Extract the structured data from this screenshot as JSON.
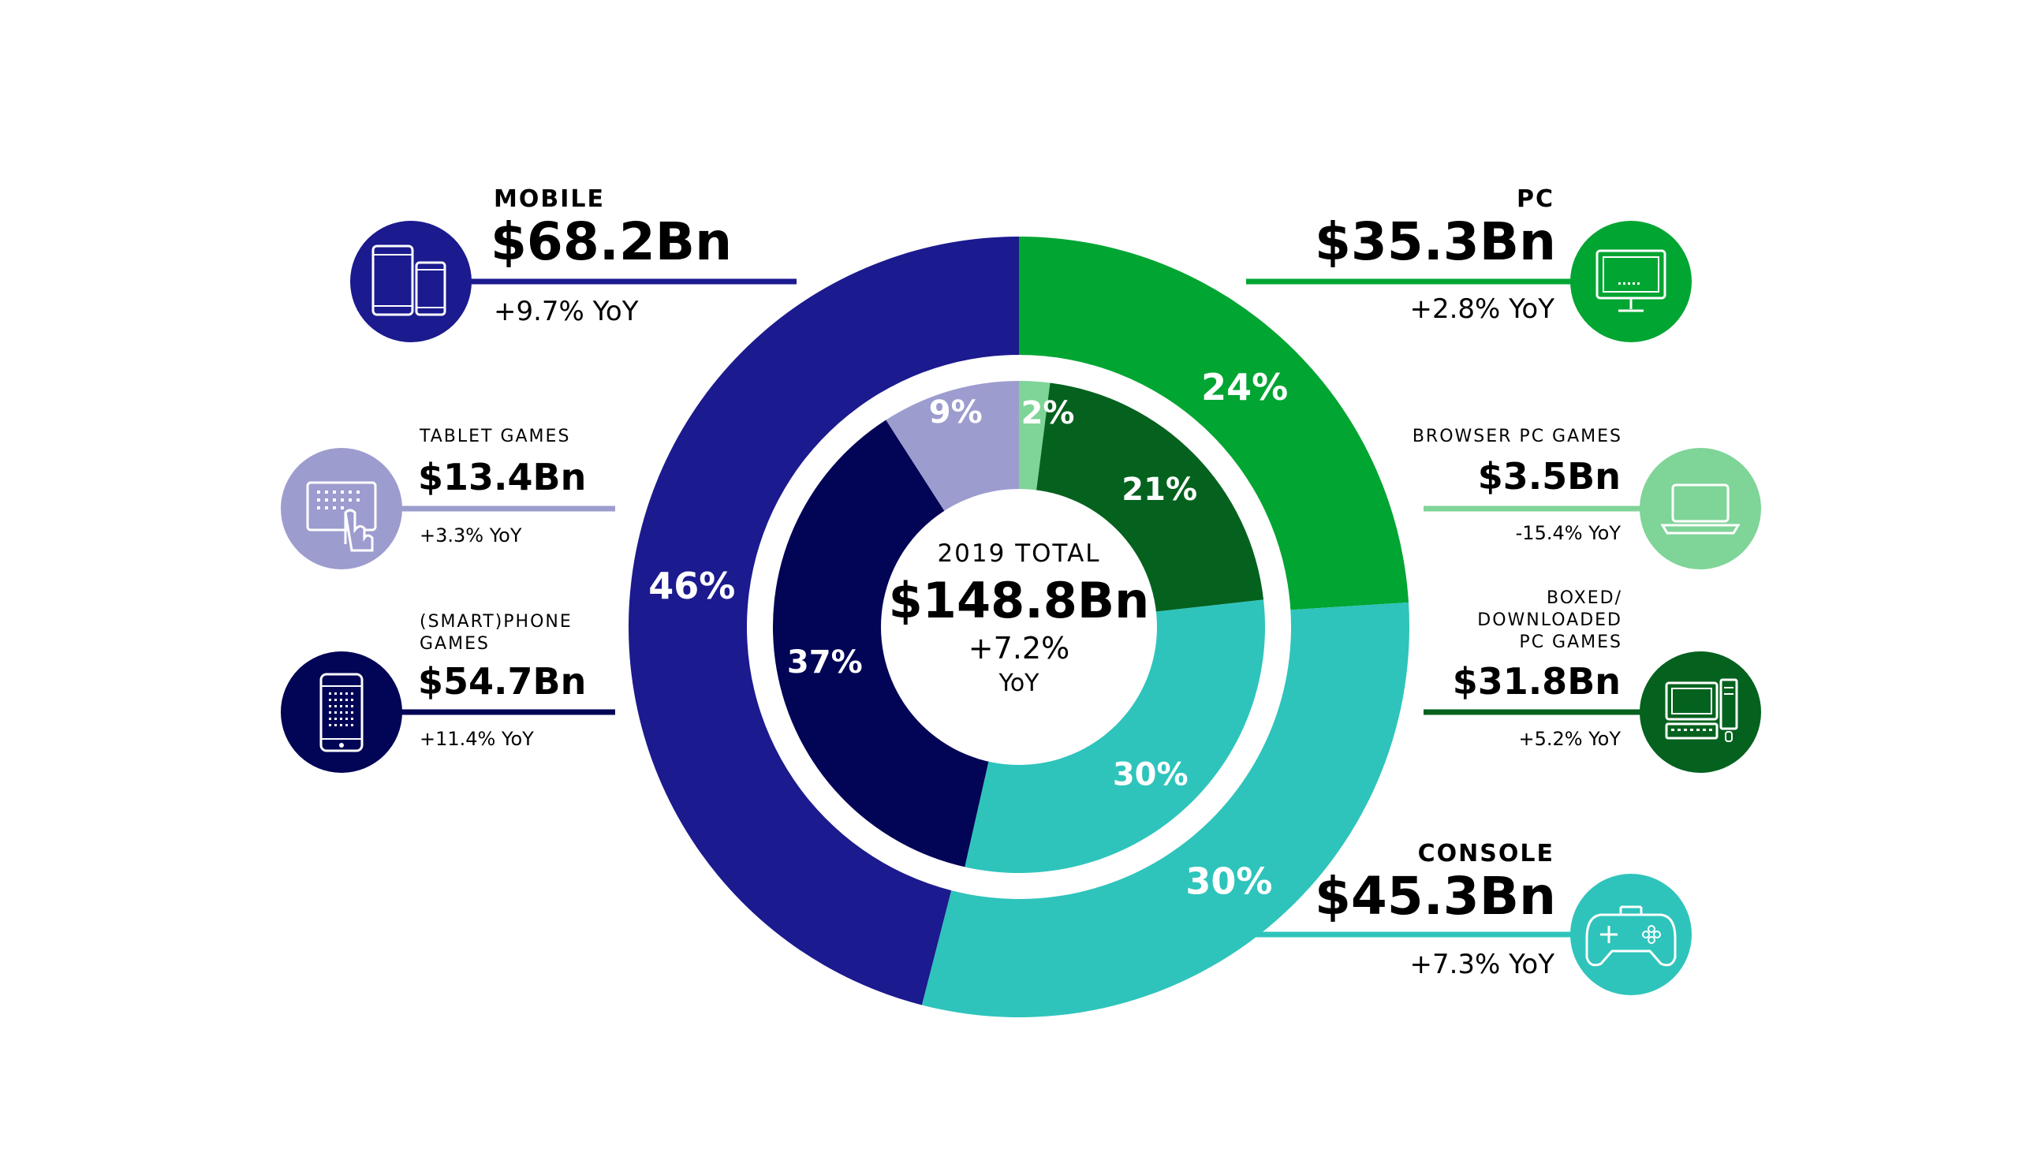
{
  "chart_data": {
    "type": "pie",
    "title": "2019 TOTAL",
    "total": {
      "label": "2019 TOTAL",
      "value": "$148.8Bn",
      "growth": "+7.2%",
      "growth_unit": "YoY"
    },
    "outer_ring": [
      {
        "name": "PC",
        "percent": 24,
        "label": "24%",
        "color": "#00a532"
      },
      {
        "name": "CONSOLE",
        "percent": 30,
        "label": "30%",
        "color": "#2ec4bb"
      },
      {
        "name": "MOBILE",
        "percent": 46,
        "label": "46%",
        "color": "#1b1a8e"
      }
    ],
    "inner_ring": [
      {
        "name": "BROWSER PC GAMES",
        "percent": 2,
        "label": "2%",
        "color": "#7fd498"
      },
      {
        "name": "BOXED/DOWNLOADED PC GAMES",
        "percent": 21,
        "label": "21%",
        "color": "#04621e"
      },
      {
        "name": "CONSOLE",
        "percent": 30,
        "label": "30%",
        "color": "#2ec4bb"
      },
      {
        "name": "(SMART)PHONE GAMES",
        "percent": 37,
        "label": "37%",
        "color": "#020456"
      },
      {
        "name": "TABLET GAMES",
        "percent": 9,
        "label": "9%",
        "color": "#9d9ccf"
      }
    ]
  },
  "segments": {
    "mobile": {
      "title": "MOBILE",
      "value": "$68.2Bn",
      "yoy": "+9.7% YoY",
      "color": "#1b1a8e",
      "icon": "mobile-devices-icon"
    },
    "tablet": {
      "title": "TABLET GAMES",
      "value": "$13.4Bn",
      "yoy": "+3.3% YoY",
      "color": "#9d9ccf",
      "icon": "tablet-touch-icon"
    },
    "phone": {
      "title_line1": "(SMART)PHONE",
      "title_line2": "GAMES",
      "value": "$54.7Bn",
      "yoy": "+11.4% YoY",
      "color": "#020456",
      "icon": "smartphone-icon"
    },
    "pc": {
      "title": "PC",
      "value": "$35.3Bn",
      "yoy": "+2.8% YoY",
      "color": "#00a532",
      "icon": "monitor-icon"
    },
    "browser": {
      "title": "BROWSER PC GAMES",
      "value": "$3.5Bn",
      "yoy": "-15.4% YoY",
      "color": "#7fd498",
      "icon": "laptop-icon"
    },
    "boxed": {
      "title_line1": "BOXED/",
      "title_line2": "DOWNLOADED",
      "title_line3": "PC GAMES",
      "value": "$31.8Bn",
      "yoy": "+5.2% YoY",
      "color": "#04621e",
      "icon": "desktop-computer-icon"
    },
    "console": {
      "title": "CONSOLE",
      "value": "$45.3Bn",
      "yoy": "+7.3% YoY",
      "color": "#2ec4bb",
      "icon": "gamepad-icon"
    }
  }
}
